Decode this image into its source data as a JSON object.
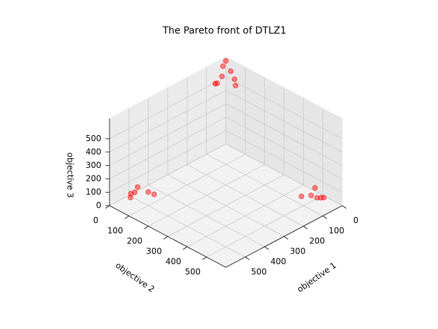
{
  "chart_data": {
    "type": "scatter3d",
    "title": "The Pareto front of DTLZ1",
    "xlabel": "objective 1",
    "ylabel": "objective 2",
    "zlabel": "objective 3",
    "x": [
      10,
      20,
      30,
      5,
      5,
      60,
      50,
      10,
      510,
      490,
      470,
      440,
      430,
      500,
      20,
      10,
      40,
      30,
      60,
      15
    ],
    "y": [
      10,
      5,
      10,
      30,
      50,
      5,
      5,
      60,
      18,
      20,
      15,
      40,
      60,
      10,
      510,
      470,
      480,
      500,
      450,
      520
    ],
    "z": [
      635,
      600,
      535,
      570,
      525,
      500,
      495,
      490,
      5,
      30,
      50,
      10,
      0,
      20,
      5,
      40,
      15,
      5,
      0,
      10
    ],
    "color": "#ff0000",
    "xlim": [
      0,
      600
    ],
    "ylim": [
      0,
      600
    ],
    "zlim": [
      0,
      650
    ],
    "xticks": [
      0,
      100,
      200,
      300,
      400,
      500
    ],
    "yticks": [
      0,
      100,
      200,
      300,
      400,
      500
    ],
    "zticks": [
      0,
      100,
      200,
      300,
      400,
      500
    ],
    "grid": true
  }
}
